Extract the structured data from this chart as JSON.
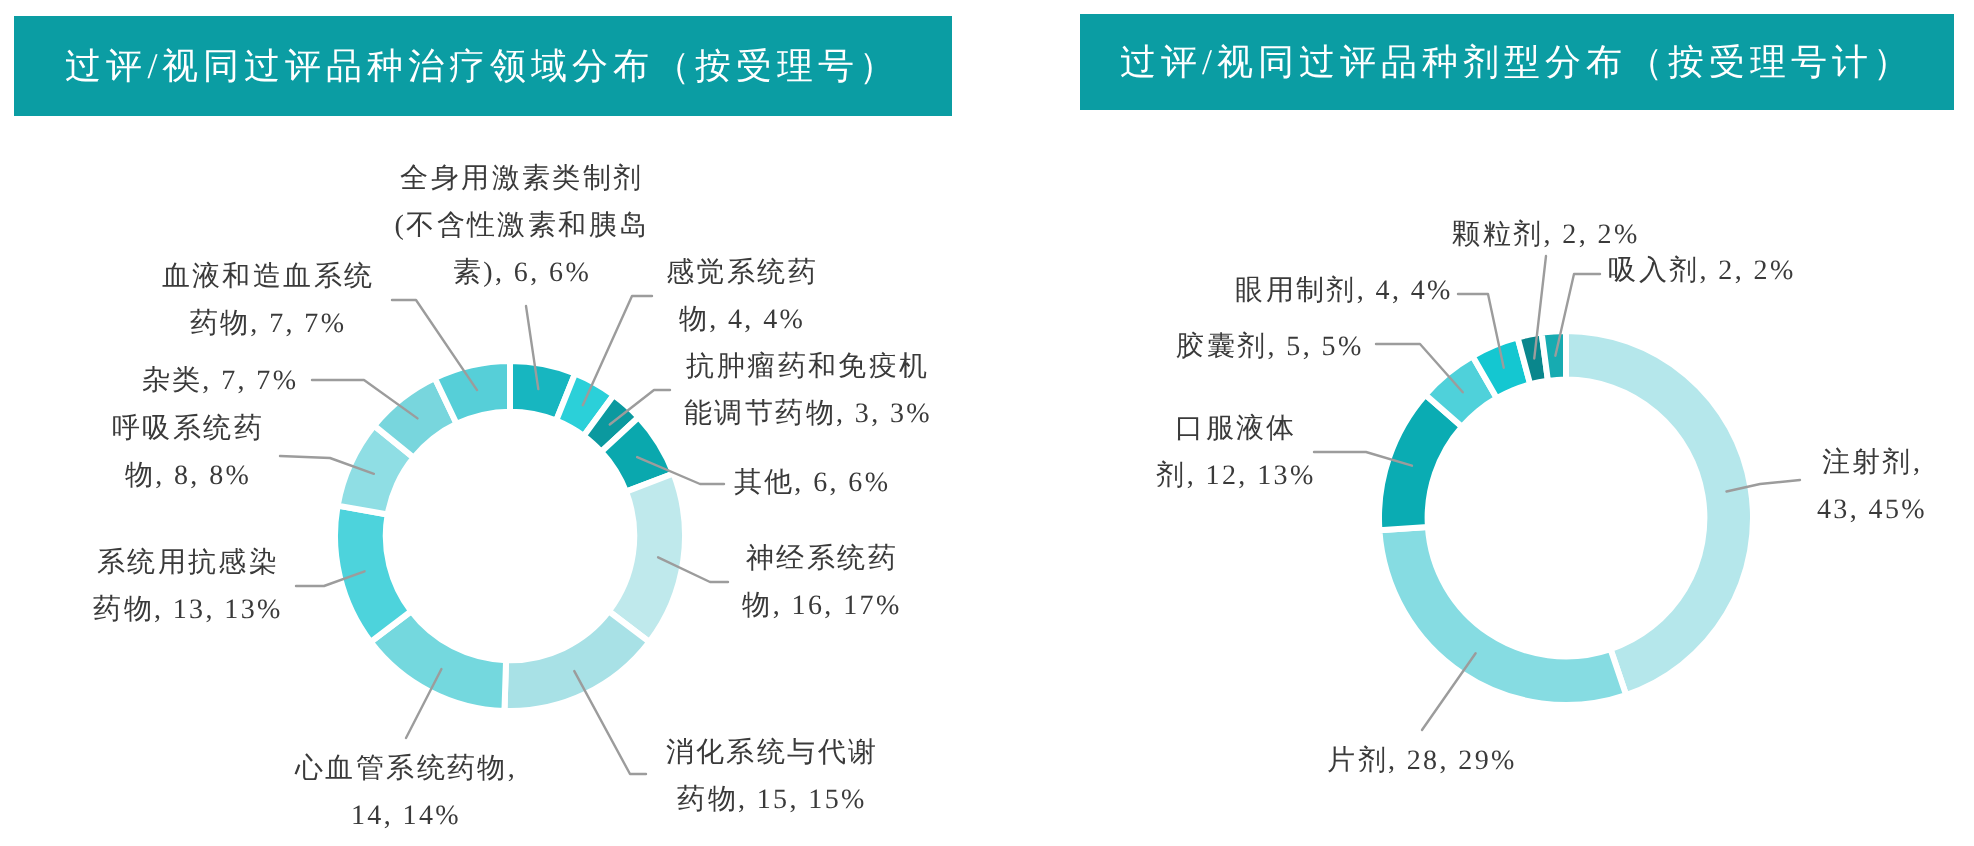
{
  "chart_data": [
    {
      "type": "donut",
      "title": "过评/视同过评品种治疗领域分布（按受理号）",
      "categories": [
        "全身用激素类制剂(不含性激素和胰岛素)",
        "感觉系统药物",
        "抗肿瘤药和免疫机能调节药物",
        "其他",
        "神经系统药物",
        "消化系统与代谢药物",
        "心血管系统药物",
        "系统用抗感染药物",
        "呼吸系统药物",
        "杂类",
        "血液和造血系统药物"
      ],
      "values": [
        6,
        4,
        3,
        6,
        16,
        15,
        14,
        13,
        8,
        7,
        7
      ],
      "colors": [
        "#17b6c0",
        "#2bd0d9",
        "#0b999f",
        "#0aa8ae",
        "#bfe9ec",
        "#a8e1e6",
        "#74d8de",
        "#4dd3dc",
        "#8fdee4",
        "#78d6dd",
        "#56cfd8"
      ],
      "value_labels": [
        ", 6, 6%",
        ", 4, 4%",
        ", 3, 3%",
        ", 6, 6%",
        ", 16, 17%",
        ", 15, 15%",
        ", 14, 14%",
        ", 13, 13%",
        ", 8, 8%",
        ", 7, 7%",
        ", 7, 7%"
      ]
    },
    {
      "type": "donut",
      "title": "过评/视同过评品种剂型分布（按受理号计）",
      "categories": [
        "注射剂",
        "片剂",
        "口服液体剂",
        "胶囊剂",
        "眼用制剂",
        "颗粒剂",
        "吸入剂"
      ],
      "values": [
        43,
        28,
        12,
        5,
        4,
        2,
        2
      ],
      "colors": [
        "#b5e7eb",
        "#86dce2",
        "#0aacb3",
        "#4fd1da",
        "#14c7d1",
        "#0a868c",
        "#17abb1"
      ],
      "value_labels": [
        ", 43, 45%",
        ", 28, 29%",
        ", 12, 13%",
        ", 5, 5%",
        ", 4, 4%",
        ", 2, 2%",
        ", 2, 2%"
      ]
    }
  ]
}
